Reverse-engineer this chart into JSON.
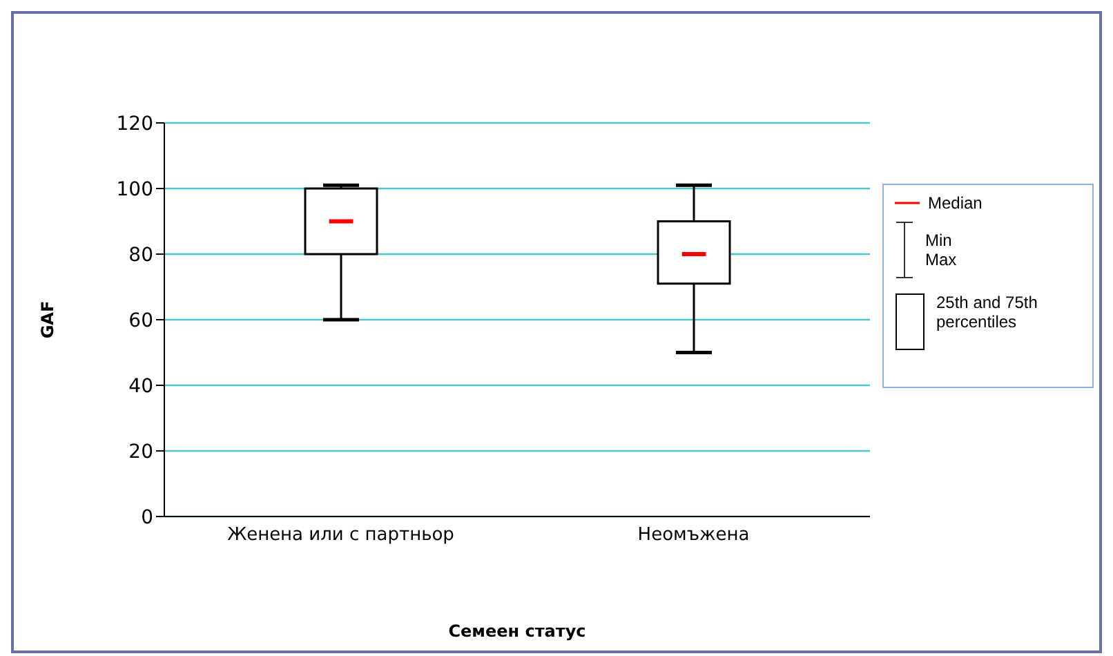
{
  "chart_data": {
    "type": "box",
    "xlabel": "Семеен статус",
    "ylabel": "GAF",
    "categories": [
      "Женена или с партньор",
      "Неомъжена"
    ],
    "boxes": [
      {
        "low": 60,
        "q1": 80,
        "median": 90,
        "q3": 100,
        "high": 101
      },
      {
        "low": 50,
        "q1": 71,
        "median": 80,
        "q3": 90,
        "high": 101
      }
    ],
    "ylim": [
      0,
      120
    ],
    "yticks": [
      0,
      20,
      40,
      60,
      80,
      100,
      120
    ],
    "grid": "y",
    "annotations": [
      "Median",
      "Min Max",
      "25th and 75th percentiles"
    ]
  }
}
